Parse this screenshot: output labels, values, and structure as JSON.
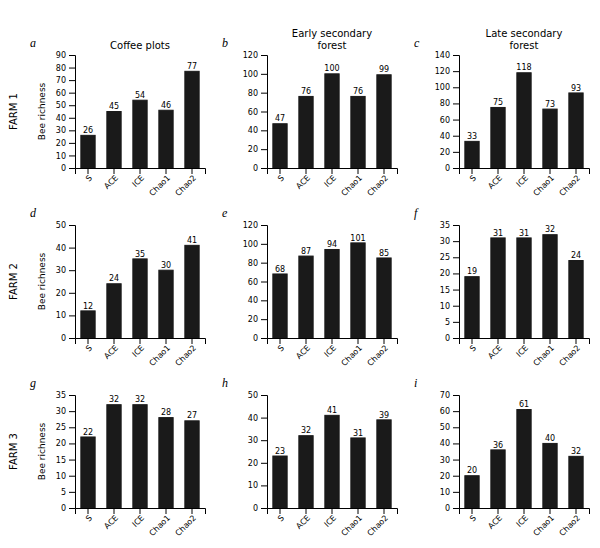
{
  "chart_data": [
    {
      "type": "bar",
      "title": "Coffee plots",
      "y_label": "Bee richness",
      "annotations": [
        "a",
        "FARM 1"
      ],
      "categories": [
        "S",
        "ACE",
        "ICE",
        "Chao1",
        "Chao2"
      ],
      "values": [
        26,
        45,
        54,
        46,
        77
      ],
      "color": "#1a1a1a",
      "ylim": [
        0,
        90
      ],
      "yticks": [
        0,
        10,
        20,
        30,
        40,
        50,
        60,
        70,
        80,
        90
      ],
      "data_labels": true
    },
    {
      "type": "bar",
      "title": "Early secondary\nforest",
      "annotations": [
        "b"
      ],
      "categories": [
        "S",
        "ACE",
        "ICE",
        "Chao1",
        "Chao2"
      ],
      "values": [
        47,
        76,
        100,
        76,
        99
      ],
      "color": "#1a1a1a",
      "ylim": [
        0,
        120
      ],
      "yticks": [
        0,
        20,
        40,
        60,
        80,
        100,
        120
      ],
      "data_labels": true
    },
    {
      "type": "bar",
      "title": "Late secondary\nforest",
      "annotations": [
        "c"
      ],
      "categories": [
        "S",
        "ACE",
        "ICE",
        "Chao1",
        "Chao2"
      ],
      "values": [
        33,
        75,
        118,
        73,
        93
      ],
      "color": "#1a1a1a",
      "ylim": [
        0,
        140
      ],
      "yticks": [
        0,
        20,
        40,
        60,
        80,
        100,
        120,
        140
      ],
      "data_labels": true
    },
    {
      "type": "bar",
      "y_label": "Bee richness",
      "annotations": [
        "d",
        "FARM 2"
      ],
      "categories": [
        "S",
        "ACE",
        "ICE",
        "Chao1",
        "Chao2"
      ],
      "values": [
        12,
        24,
        35,
        30,
        41
      ],
      "color": "#1a1a1a",
      "ylim": [
        0,
        50
      ],
      "yticks": [
        0,
        10,
        20,
        30,
        40,
        50
      ],
      "data_labels": true
    },
    {
      "type": "bar",
      "annotations": [
        "e"
      ],
      "categories": [
        "S",
        "ACE",
        "ICE",
        "Chao1",
        "Chao2"
      ],
      "values": [
        68,
        87,
        94,
        101,
        85
      ],
      "color": "#1a1a1a",
      "ylim": [
        0,
        120
      ],
      "yticks": [
        0,
        20,
        40,
        60,
        80,
        100,
        120
      ],
      "data_labels": true
    },
    {
      "type": "bar",
      "annotations": [
        "f"
      ],
      "categories": [
        "S",
        "ACE",
        "ICE",
        "Chao1",
        "Chao2"
      ],
      "values": [
        19,
        31,
        31,
        32,
        24
      ],
      "color": "#1a1a1a",
      "ylim": [
        0,
        35
      ],
      "yticks": [
        0,
        5,
        10,
        15,
        20,
        25,
        30,
        35
      ],
      "data_labels": true
    },
    {
      "type": "bar",
      "y_label": "Bee richness",
      "annotations": [
        "g",
        "FARM 3"
      ],
      "categories": [
        "S",
        "ACE",
        "ICE",
        "Chao1",
        "Chao2"
      ],
      "values": [
        22,
        32,
        32,
        28,
        27
      ],
      "color": "#1a1a1a",
      "ylim": [
        0,
        35
      ],
      "yticks": [
        0,
        5,
        10,
        15,
        20,
        25,
        30,
        35
      ],
      "data_labels": true
    },
    {
      "type": "bar",
      "annotations": [
        "h"
      ],
      "categories": [
        "S",
        "ACE",
        "ICE",
        "Chao1",
        "Chao2"
      ],
      "values": [
        23,
        32,
        41,
        31,
        39
      ],
      "color": "#1a1a1a",
      "ylim": [
        0,
        50
      ],
      "yticks": [
        0,
        10,
        20,
        30,
        40,
        50
      ],
      "data_labels": true
    },
    {
      "type": "bar",
      "annotations": [
        "i"
      ],
      "categories": [
        "S",
        "ACE",
        "ICE",
        "Chao1",
        "Chao2"
      ],
      "values": [
        20,
        36,
        61,
        40,
        32
      ],
      "color": "#1a1a1a",
      "ylim": [
        0,
        70
      ],
      "yticks": [
        0,
        10,
        20,
        30,
        40,
        50,
        60,
        70
      ],
      "data_labels": true
    }
  ]
}
